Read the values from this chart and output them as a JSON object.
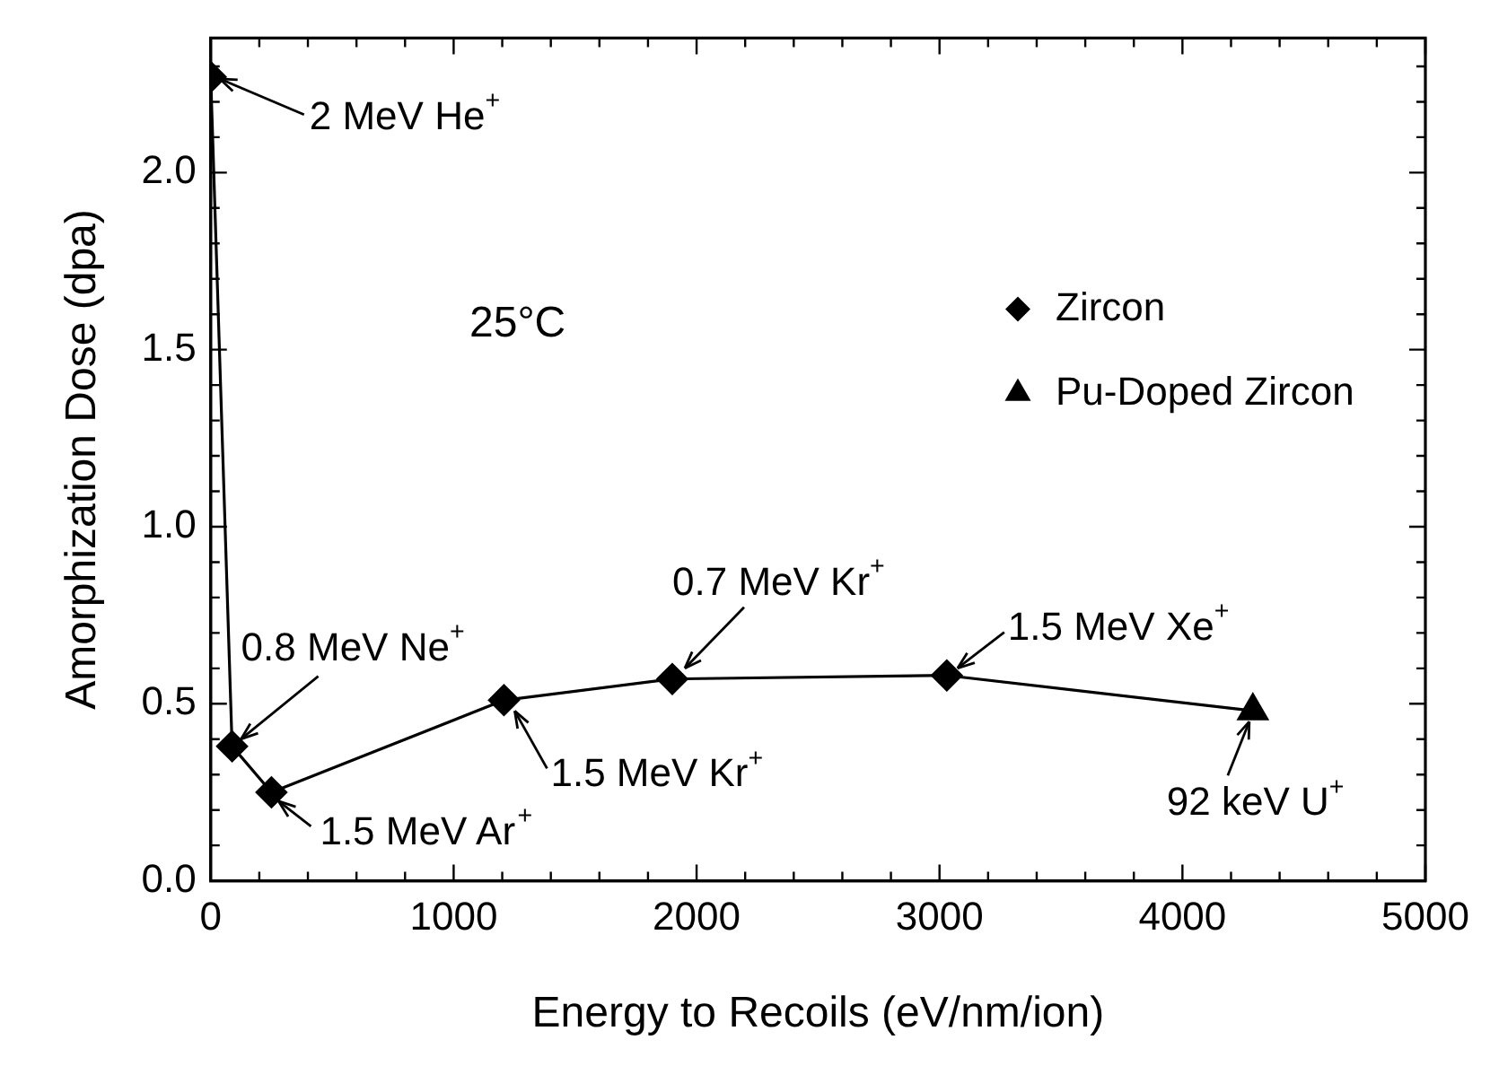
{
  "chart_data": {
    "type": "line",
    "xlabel": "Energy to Recoils (eV/nm/ion)",
    "ylabel": "Amorphization Dose (dpa)",
    "xlim": [
      0,
      5000
    ],
    "ylim": [
      0,
      2.38
    ],
    "xticks": [
      0,
      {
        "value": 200,
        "label": null
      },
      {
        "value": 400,
        "label": null
      },
      {
        "value": 600,
        "label": null
      },
      {
        "value": 800,
        "label": null
      },
      1000,
      {
        "value": 1200,
        "label": null
      },
      {
        "value": 1400,
        "label": null
      },
      {
        "value": 1600,
        "label": null
      },
      {
        "value": 1800,
        "label": null
      },
      2000,
      {
        "value": 2200,
        "label": null
      },
      {
        "value": 2400,
        "label": null
      },
      {
        "value": 2600,
        "label": null
      },
      {
        "value": 2800,
        "label": null
      },
      3000,
      {
        "value": 3200,
        "label": null
      },
      {
        "value": 3400,
        "label": null
      },
      {
        "value": 3600,
        "label": null
      },
      {
        "value": 3800,
        "label": null
      },
      4000,
      {
        "value": 4200,
        "label": null
      },
      {
        "value": 4400,
        "label": null
      },
      {
        "value": 4600,
        "label": null
      },
      {
        "value": 4800,
        "label": null
      },
      5000
    ],
    "yticks": [
      {
        "value": 0,
        "label": "0.0"
      },
      {
        "value": 0.1,
        "label": null
      },
      {
        "value": 0.2,
        "label": null
      },
      {
        "value": 0.3,
        "label": null
      },
      {
        "value": 0.4,
        "label": null
      },
      0.5,
      {
        "value": 0.6,
        "label": null
      },
      {
        "value": 0.7,
        "label": null
      },
      {
        "value": 0.8,
        "label": null
      },
      {
        "value": 0.9,
        "label": null
      },
      {
        "value": 1,
        "label": "1.0"
      },
      {
        "value": 1.1,
        "label": null
      },
      {
        "value": 1.2,
        "label": null
      },
      {
        "value": 1.3,
        "label": null
      },
      {
        "value": 1.4,
        "label": null
      },
      1.5,
      {
        "value": 1.6,
        "label": null
      },
      {
        "value": 1.7,
        "label": null
      },
      {
        "value": 1.8,
        "label": null
      },
      {
        "value": 1.9,
        "label": null
      },
      {
        "value": 2,
        "label": "2.0"
      },
      {
        "value": 2.1,
        "label": null
      },
      {
        "value": 2.2,
        "label": null
      },
      {
        "value": 2.3,
        "label": null
      }
    ],
    "series": [
      {
        "name": "Zircon",
        "color": "#000000",
        "marker": "diamond",
        "x": [
          0,
          88,
          250,
          1207,
          1900,
          3030
        ],
        "values": [
          2.27,
          0.38,
          0.25,
          0.51,
          0.57,
          0.58
        ]
      },
      {
        "name": "Pu-Doped Zircon",
        "color": "#000000",
        "marker": "triangle",
        "x": [
          4290
        ],
        "values": [
          0.48
        ]
      },
      {
        "color": "#000000",
        "marker": "none",
        "x": [
          3030,
          4290
        ],
        "values": [
          0.58,
          0.48
        ]
      }
    ],
    "legend": "top right",
    "annotations": [
      {
        "text": "2 MeV He$^{+}$",
        "x": 0,
        "y": 2.27
      },
      {
        "text": "0.8 MeV Ne$^{+}$",
        "x": 88,
        "y": 0.38
      },
      {
        "text": "1.5 MeV Ar$^{+}$",
        "x": 250,
        "y": 0.25
      },
      {
        "text": "1.5 MeV Kr$^{+}$",
        "x": 1207,
        "y": 0.51
      },
      {
        "text": "0.7 MeV Kr$^{+}$",
        "x": 1900,
        "y": 0.57
      },
      {
        "text": "1.5 MeV Xe$^{+}$",
        "x": 3030,
        "y": 0.58
      },
      {
        "text": "92 keV U$^{+}$",
        "x": 4290,
        "y": 0.48
      },
      "25°C"
    ]
  }
}
